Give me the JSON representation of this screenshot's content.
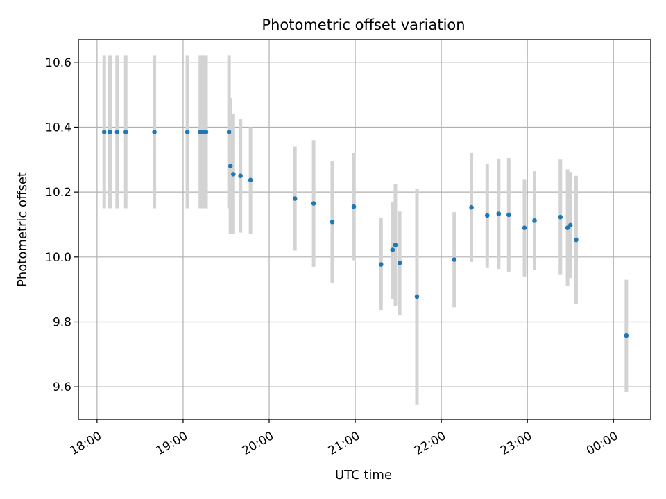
{
  "colors": {
    "point": "#1f77b4",
    "errorbar": "#d3d3d3",
    "grid": "#b0b0b0"
  },
  "chart_data": {
    "type": "scatter",
    "title": "Photometric offset variation",
    "xlabel": "UTC time",
    "ylabel": "Photometric offset",
    "grid": true,
    "x_axis": "time",
    "xlim": [
      "17:47",
      "00:26"
    ],
    "ylim": [
      9.5,
      10.67
    ],
    "xticks": [
      "18:00",
      "19:00",
      "20:00",
      "21:00",
      "22:00",
      "23:00",
      "00:00"
    ],
    "yticks": [
      "9.6",
      "9.8",
      "10.0",
      "10.2",
      "10.4",
      "10.6"
    ],
    "points": [
      {
        "x": "18:05",
        "y": 10.385,
        "ylow": 10.15,
        "yhigh": 10.62
      },
      {
        "x": "18:09",
        "y": 10.385,
        "ylow": 10.15,
        "yhigh": 10.62
      },
      {
        "x": "18:14",
        "y": 10.385,
        "ylow": 10.15,
        "yhigh": 10.62
      },
      {
        "x": "18:20",
        "y": 10.385,
        "ylow": 10.15,
        "yhigh": 10.62
      },
      {
        "x": "18:40",
        "y": 10.385,
        "ylow": 10.15,
        "yhigh": 10.62
      },
      {
        "x": "19:03",
        "y": 10.385,
        "ylow": 10.15,
        "yhigh": 10.62
      },
      {
        "x": "19:12",
        "y": 10.385,
        "ylow": 10.15,
        "yhigh": 10.62
      },
      {
        "x": "19:14",
        "y": 10.385,
        "ylow": 10.15,
        "yhigh": 10.62
      },
      {
        "x": "19:16",
        "y": 10.385,
        "ylow": 10.15,
        "yhigh": 10.62
      },
      {
        "x": "19:32",
        "y": 10.385,
        "ylow": 10.15,
        "yhigh": 10.62
      },
      {
        "x": "19:33",
        "y": 10.28,
        "ylow": 10.07,
        "yhigh": 10.49
      },
      {
        "x": "19:35",
        "y": 10.255,
        "ylow": 10.07,
        "yhigh": 10.44
      },
      {
        "x": "19:40",
        "y": 10.25,
        "ylow": 10.075,
        "yhigh": 10.425
      },
      {
        "x": "19:47",
        "y": 10.237,
        "ylow": 10.07,
        "yhigh": 10.4
      },
      {
        "x": "20:18",
        "y": 10.18,
        "ylow": 10.02,
        "yhigh": 10.34
      },
      {
        "x": "20:31",
        "y": 10.165,
        "ylow": 9.97,
        "yhigh": 10.36
      },
      {
        "x": "20:44",
        "y": 10.108,
        "ylow": 9.92,
        "yhigh": 10.295
      },
      {
        "x": "20:59",
        "y": 10.155,
        "ylow": 9.99,
        "yhigh": 10.32
      },
      {
        "x": "21:18",
        "y": 9.977,
        "ylow": 9.835,
        "yhigh": 10.12
      },
      {
        "x": "21:26",
        "y": 10.022,
        "ylow": 9.87,
        "yhigh": 10.17
      },
      {
        "x": "21:28",
        "y": 10.037,
        "ylow": 9.85,
        "yhigh": 10.225
      },
      {
        "x": "21:31",
        "y": 9.982,
        "ylow": 9.82,
        "yhigh": 10.14
      },
      {
        "x": "21:43",
        "y": 9.878,
        "ylow": 9.545,
        "yhigh": 10.21
      },
      {
        "x": "22:09",
        "y": 9.992,
        "ylow": 9.845,
        "yhigh": 10.138
      },
      {
        "x": "22:21",
        "y": 10.153,
        "ylow": 9.985,
        "yhigh": 10.32
      },
      {
        "x": "22:32",
        "y": 10.128,
        "ylow": 9.968,
        "yhigh": 10.288
      },
      {
        "x": "22:40",
        "y": 10.133,
        "ylow": 9.963,
        "yhigh": 10.303
      },
      {
        "x": "22:47",
        "y": 10.13,
        "ylow": 9.955,
        "yhigh": 10.305
      },
      {
        "x": "22:58",
        "y": 10.09,
        "ylow": 9.94,
        "yhigh": 10.24
      },
      {
        "x": "23:05",
        "y": 10.112,
        "ylow": 9.96,
        "yhigh": 10.264
      },
      {
        "x": "23:23",
        "y": 10.123,
        "ylow": 9.945,
        "yhigh": 10.3
      },
      {
        "x": "23:28",
        "y": 10.09,
        "ylow": 9.91,
        "yhigh": 10.27
      },
      {
        "x": "23:30",
        "y": 10.098,
        "ylow": 9.935,
        "yhigh": 10.262
      },
      {
        "x": "23:34",
        "y": 10.053,
        "ylow": 9.855,
        "yhigh": 10.25
      },
      {
        "x": "00:09",
        "y": 9.758,
        "ylow": 9.585,
        "yhigh": 9.93
      }
    ]
  }
}
